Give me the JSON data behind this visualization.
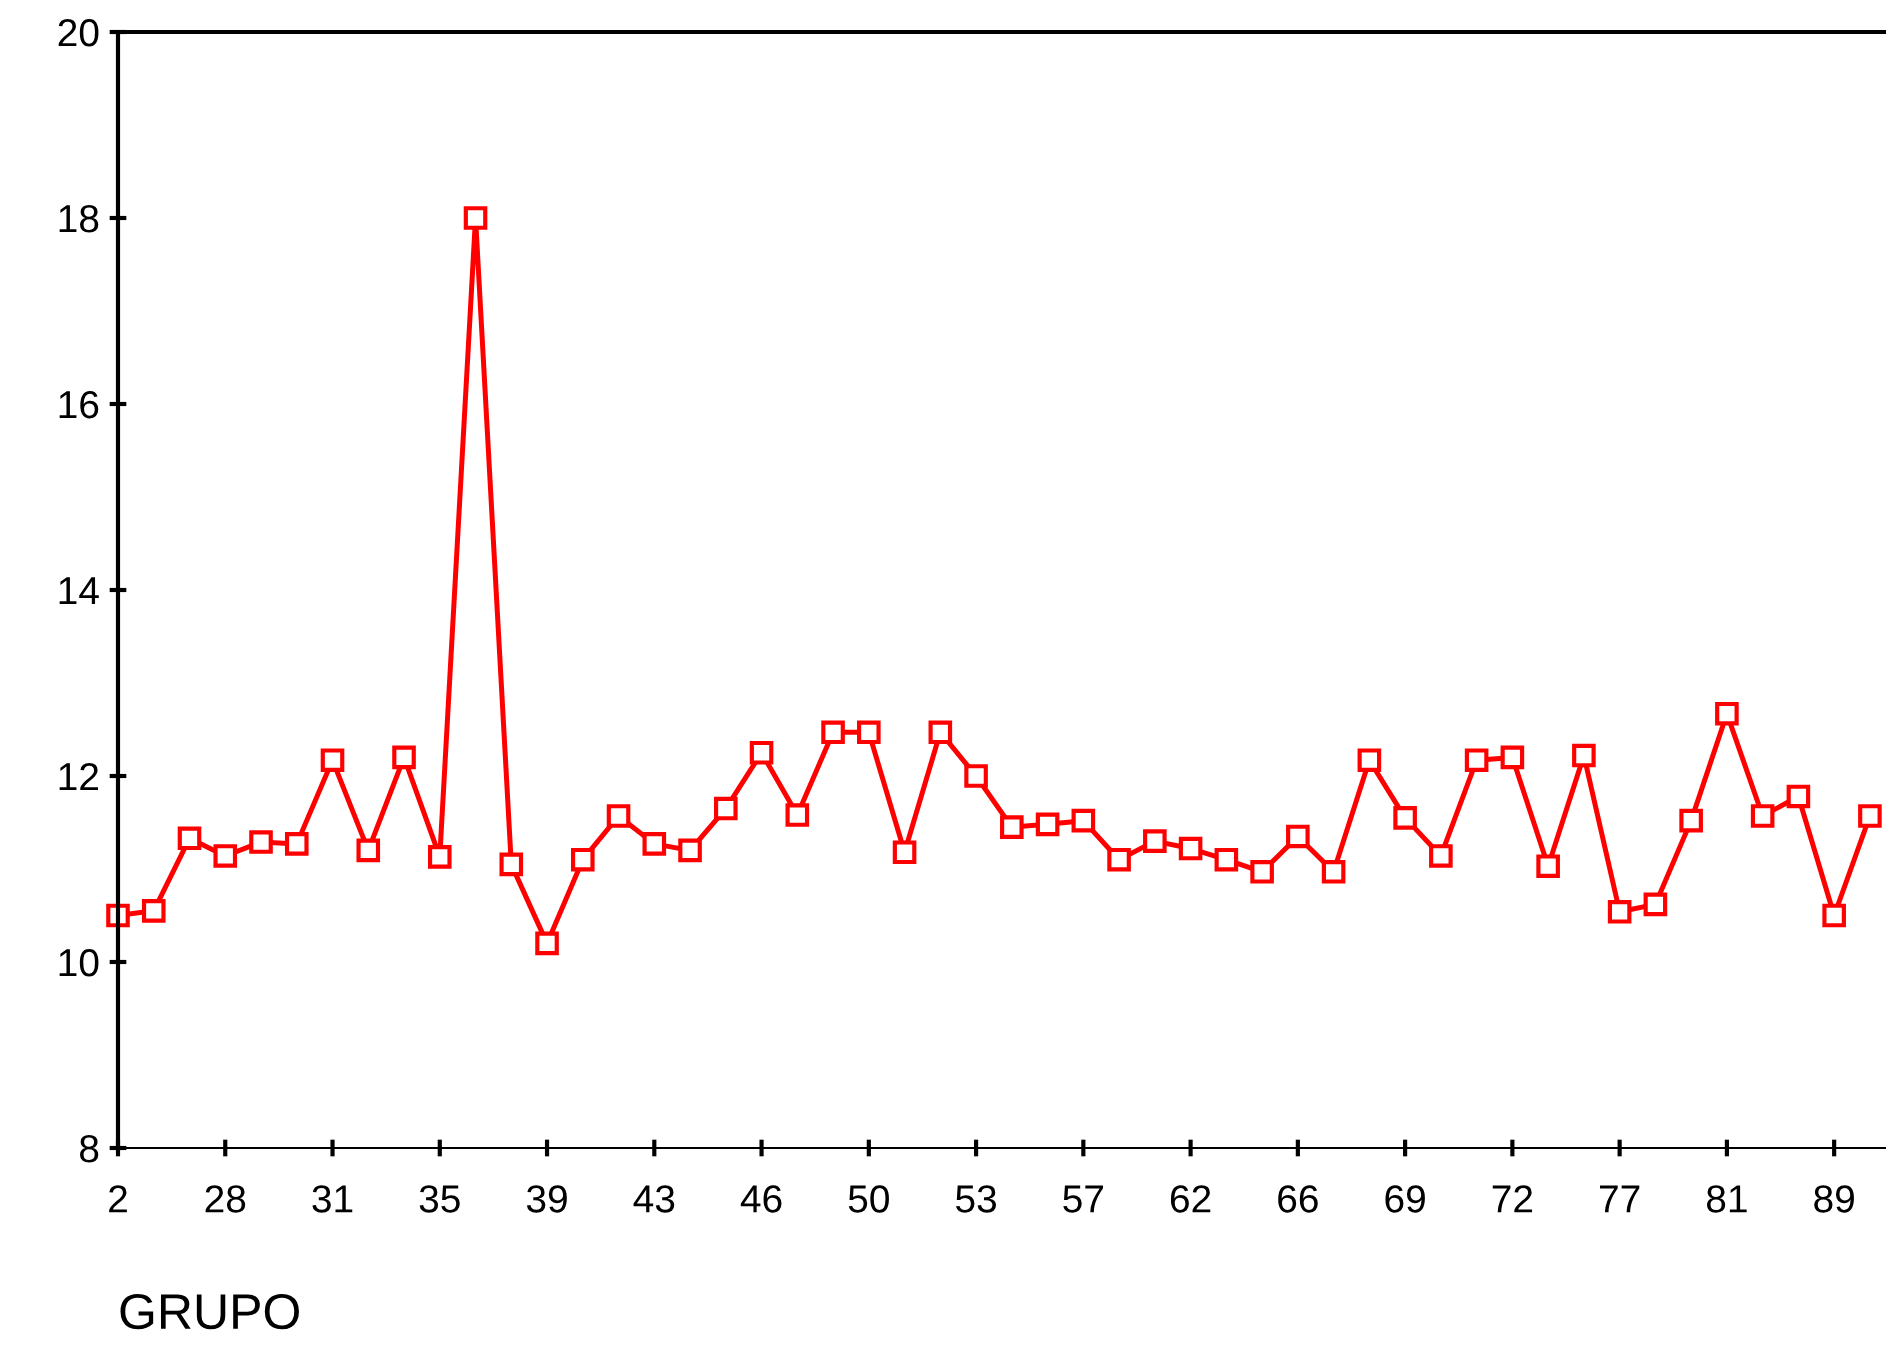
{
  "chart_data": {
    "type": "line",
    "xlabel": "GRUPO",
    "categories": [
      "2",
      null,
      null,
      "28",
      null,
      null,
      "31",
      null,
      null,
      "35",
      null,
      null,
      "39",
      null,
      null,
      "43",
      null,
      null,
      "46",
      null,
      null,
      "50",
      null,
      null,
      "53",
      null,
      null,
      "57",
      null,
      null,
      "62",
      null,
      null,
      "66",
      null,
      null,
      "69",
      null,
      null,
      "72",
      null,
      null,
      "77",
      null,
      null,
      "81",
      null,
      null,
      "89",
      null
    ],
    "series": [
      {
        "color": "#ff0000",
        "values": [
          10.5,
          10.55,
          11.33,
          11.14,
          11.29,
          11.27,
          12.17,
          11.2,
          12.2,
          11.13,
          18.0,
          11.05,
          10.2,
          11.1,
          11.57,
          11.27,
          11.2,
          11.65,
          12.25,
          11.58,
          12.47,
          12.47,
          11.18,
          12.47,
          12.0,
          11.45,
          11.48,
          11.52,
          11.1,
          11.3,
          11.22,
          11.1,
          10.97,
          11.35,
          10.97,
          12.17,
          11.55,
          11.14,
          12.17,
          12.2,
          11.03,
          12.22,
          10.54,
          10.62,
          11.52,
          12.67,
          11.57,
          11.78,
          10.5,
          11.57
        ]
      }
    ],
    "ylim": [
      8,
      20
    ],
    "yticks": [
      8,
      10,
      12,
      14,
      16,
      18,
      20
    ],
    "grid": false,
    "marker": "square",
    "line_style": "solid"
  }
}
